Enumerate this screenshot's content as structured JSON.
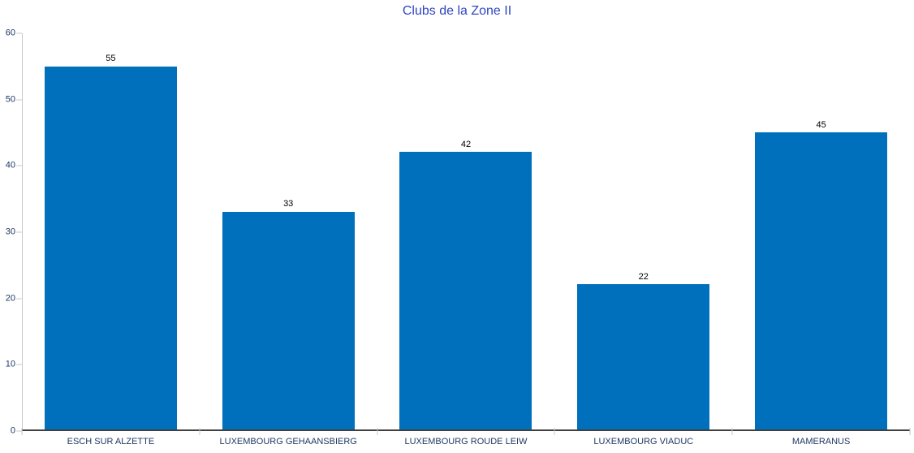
{
  "chart_data": {
    "type": "bar",
    "title": "Clubs de la Zone II",
    "categories": [
      "ESCH SUR ALZETTE",
      "LUXEMBOURG GEHAANSBIERG",
      "LUXEMBOURG ROUDE LEIW",
      "LUXEMBOURG VIADUC",
      "MAMERANUS"
    ],
    "values": [
      55,
      33,
      42,
      22,
      45
    ],
    "data_labels": [
      "55",
      "33",
      "42",
      "22",
      "45"
    ],
    "xlabel": "",
    "ylabel": "",
    "ylim": [
      0,
      60
    ],
    "yticks": [
      0,
      10,
      20,
      30,
      40,
      50,
      60
    ],
    "grid": false,
    "legend": "none",
    "bar_gap_fraction": 0.255,
    "colors": {
      "bar": "#0070BC",
      "title": "#2E46C0",
      "axis_labels": "#1F3864",
      "value_labels": "#000000",
      "y_axis_line": "#C9C9C9",
      "x_axis_line": "#404040",
      "background": "#FFFFFF"
    }
  }
}
